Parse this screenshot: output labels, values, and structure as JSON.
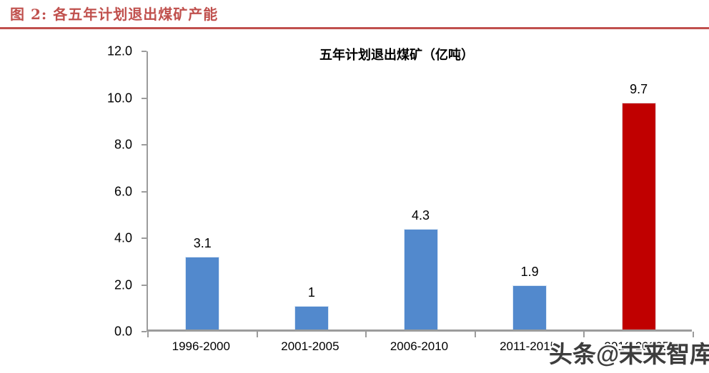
{
  "header": {
    "caption": "图 2: 各五年计划退出煤矿产能"
  },
  "colors": {
    "accent": "#C0504D",
    "axis": "#9C9C9C",
    "bar_blue": "#5289CD",
    "bar_red": "#C00000"
  },
  "watermark": {
    "text": "头条@未来智库"
  },
  "chart_data": {
    "type": "bar",
    "title": "五年计划退出煤矿（亿吨）",
    "categories": [
      "1996-2000",
      "2001-2005",
      "2006-2010",
      "2011-2015",
      "2016-2020E"
    ],
    "values": [
      3.1,
      1,
      4.3,
      1.9,
      9.7
    ],
    "value_labels": [
      "3.1",
      "1",
      "4.3",
      "1.9",
      "9.7"
    ],
    "bar_colors": [
      "#5289CD",
      "#5289CD",
      "#5289CD",
      "#5289CD",
      "#C00000"
    ],
    "xlabel": "",
    "ylabel": "",
    "ylim": [
      0,
      12
    ],
    "ytick_step": 2,
    "ytick_labels": [
      "0.0",
      "2.0",
      "4.0",
      "6.0",
      "8.0",
      "10.0",
      "12.0"
    ],
    "grid": false,
    "legend": "none"
  }
}
